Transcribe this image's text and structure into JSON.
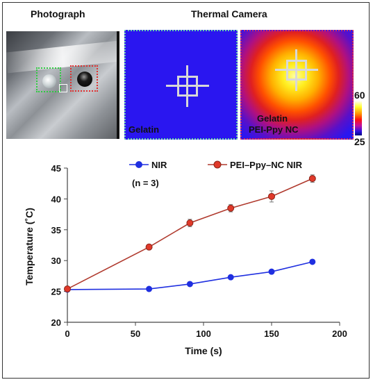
{
  "headings": {
    "photo": "Photograph",
    "thermal": "Thermal Camera"
  },
  "thermal": {
    "left_label": "Gelatin",
    "right_label_1": "Gelatin",
    "right_label_2": "PEI-Ppy NC",
    "colorbar_max": "60",
    "colorbar_min": "25"
  },
  "colors": {
    "nir": "#1f2fe0",
    "pei": "#e0392a",
    "pei_line": "#b03a2e"
  },
  "chart_data": {
    "type": "line",
    "xlabel": "Time (s)",
    "ylabel": "Temperature (˚C)",
    "xlim": [
      0,
      200
    ],
    "ylim": [
      20,
      45
    ],
    "xticks": [
      "0",
      "50",
      "100",
      "150",
      "200"
    ],
    "yticks": [
      "20",
      "25",
      "30",
      "35",
      "40",
      "45"
    ],
    "annotation": "(n = 3)",
    "legend_position": "top",
    "grid": false,
    "series": [
      {
        "name": "NIR",
        "x": [
          0,
          60,
          90,
          120,
          150,
          180
        ],
        "y": [
          25.3,
          25.4,
          26.2,
          27.3,
          28.2,
          29.8
        ],
        "err": [
          0.1,
          0.1,
          0.15,
          0.15,
          0.2,
          0.25
        ]
      },
      {
        "name": "PEI–Ppy–NC NIR",
        "x": [
          0,
          60,
          90,
          120,
          150,
          180
        ],
        "y": [
          25.4,
          32.2,
          36.1,
          38.5,
          40.4,
          43.3
        ],
        "err": [
          0.2,
          0.3,
          0.6,
          0.6,
          0.9,
          0.6
        ]
      }
    ]
  }
}
